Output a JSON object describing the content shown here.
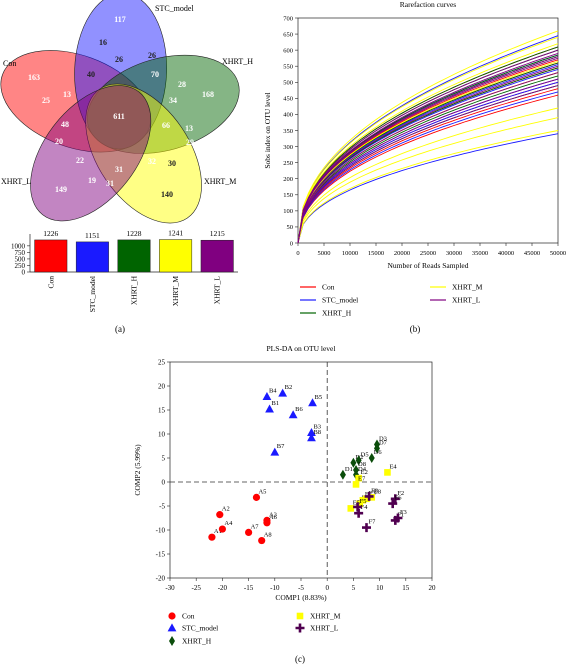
{
  "panel_labels": {
    "a": "(a)",
    "b": "(b)",
    "c": "(c)"
  },
  "venn": {
    "sets": [
      {
        "name": "Con",
        "color": "#ff0000",
        "unique": 163
      },
      {
        "name": "STC_model",
        "color": "#1a1aff",
        "unique": 117
      },
      {
        "name": "XHRT_H",
        "color": "#006400",
        "unique": 168
      },
      {
        "name": "XHRT_M",
        "color": "#ffff00",
        "unique": 140
      },
      {
        "name": "XHRT_L",
        "color": "#800080",
        "unique": 149
      }
    ],
    "core": 611,
    "other_counts": [
      "16",
      "26",
      "40",
      "70",
      "25",
      "13",
      "28",
      "26",
      "34",
      "66",
      "48",
      "13",
      "20",
      "30",
      "29",
      "32",
      "31",
      "22",
      "19",
      "31"
    ]
  },
  "chart_data": [
    {
      "type": "bar",
      "categories": [
        "Con",
        "STC_model",
        "XHRT_H",
        "XHRT_M",
        "XHRT_L"
      ],
      "values": [
        1226,
        1151,
        1228,
        1241,
        1215
      ],
      "colors": [
        "#ff0000",
        "#1a1aff",
        "#006400",
        "#ffff00",
        "#800080"
      ],
      "yticks": [
        0,
        250,
        500,
        750,
        1000
      ],
      "ylim": [
        0,
        1300
      ]
    },
    {
      "type": "line",
      "title": "Rarefaction curves",
      "xlabel": "Number of Reads Sampled",
      "ylabel": "Sobs index on OTU level",
      "xlim": [
        0,
        50000
      ],
      "ylim": [
        0,
        700
      ],
      "xticks": [
        0,
        5000,
        10000,
        15000,
        20000,
        25000,
        30000,
        35000,
        40000,
        45000,
        50000
      ],
      "yticks": [
        0,
        50,
        100,
        150,
        200,
        250,
        300,
        350,
        400,
        450,
        500,
        550,
        600,
        650,
        700
      ],
      "series": [
        {
          "name": "Con",
          "color": "#ff0000",
          "end_values": [
            460,
            530,
            570,
            610,
            500,
            545,
            560,
            480
          ]
        },
        {
          "name": "STC_model",
          "color": "#1a1aff",
          "end_values": [
            645,
            585,
            540,
            510,
            340,
            470,
            555,
            500
          ]
        },
        {
          "name": "XHRT_H",
          "color": "#006400",
          "end_values": [
            610,
            580,
            560,
            520,
            600,
            545,
            490,
            585
          ]
        },
        {
          "name": "XHRT_M",
          "color": "#ffff00",
          "end_values": [
            660,
            620,
            565,
            530,
            420,
            390,
            640,
            350
          ]
        },
        {
          "name": "XHRT_L",
          "color": "#800080",
          "end_values": [
            600,
            550,
            510,
            580,
            490,
            590,
            530,
            575
          ]
        }
      ]
    },
    {
      "type": "scatter",
      "title": "PLS-DA on OTU level",
      "xlabel": "COMP1 (8.83%)",
      "ylabel": "COMP2 (5.99%)",
      "xlim": [
        -30,
        20
      ],
      "ylim": [
        -20,
        25
      ],
      "xticks": [
        -30,
        -25,
        -20,
        -15,
        -10,
        -5,
        0,
        5,
        10,
        15,
        20
      ],
      "yticks": [
        -20,
        -15,
        -10,
        -5,
        0,
        5,
        10,
        15,
        20,
        25
      ],
      "series": [
        {
          "name": "Con",
          "color": "#ff0000",
          "marker": "circle",
          "points": [
            {
              "label": "A1",
              "x": -22,
              "y": -11.5
            },
            {
              "label": "A2",
              "x": -20.5,
              "y": -6.8
            },
            {
              "label": "A3",
              "x": -11.5,
              "y": -8.0
            },
            {
              "label": "A4",
              "x": -20,
              "y": -9.8
            },
            {
              "label": "A5",
              "x": -13.5,
              "y": -3.2
            },
            {
              "label": "A6",
              "x": -11.5,
              "y": -8.5
            },
            {
              "label": "A7",
              "x": -15,
              "y": -10.5
            },
            {
              "label": "A8",
              "x": -12.5,
              "y": -12.2
            }
          ]
        },
        {
          "name": "STC_model",
          "color": "#1a1aff",
          "marker": "triangle",
          "points": [
            {
              "label": "B1",
              "x": -11,
              "y": 15.2
            },
            {
              "label": "B2",
              "x": -8.5,
              "y": 18.5
            },
            {
              "label": "B3",
              "x": -3,
              "y": 10.3
            },
            {
              "label": "B4",
              "x": -11.5,
              "y": 17.8
            },
            {
              "label": "B5",
              "x": -2.8,
              "y": 16.5
            },
            {
              "label": "B6",
              "x": -6.5,
              "y": 14
            },
            {
              "label": "B7",
              "x": -10,
              "y": 6.2
            },
            {
              "label": "B8",
              "x": -3,
              "y": 9.2
            }
          ]
        },
        {
          "name": "XHRT_H",
          "color": "#0b4d0b",
          "marker": "diamond",
          "points": [
            {
              "label": "D1",
              "x": 3,
              "y": 1.5
            },
            {
              "label": "D2",
              "x": 5,
              "y": 4
            },
            {
              "label": "D3",
              "x": 9.5,
              "y": 7.8
            },
            {
              "label": "D4",
              "x": 5.5,
              "y": 1.5
            },
            {
              "label": "D5",
              "x": 6,
              "y": 4.5
            },
            {
              "label": "D6",
              "x": 8.5,
              "y": 5
            },
            {
              "label": "D7",
              "x": 9.5,
              "y": 7
            },
            {
              "label": "D8",
              "x": 5.5,
              "y": 2.5
            }
          ]
        },
        {
          "name": "XHRT_M",
          "color": "#ffff00",
          "marker": "square",
          "points": [
            {
              "label": "E1",
              "x": 6.2,
              "y": -4.5
            },
            {
              "label": "E2",
              "x": 6,
              "y": 0.8
            },
            {
              "label": "E3",
              "x": 7.5,
              "y": -3.5
            },
            {
              "label": "E4",
              "x": 11.5,
              "y": 2
            },
            {
              "label": "E5",
              "x": 4.5,
              "y": -5.5
            },
            {
              "label": "E6",
              "x": 6.8,
              "y": -3.8
            },
            {
              "label": "E7",
              "x": 5.5,
              "y": -0.5
            },
            {
              "label": "E8",
              "x": 8.5,
              "y": -3.2
            }
          ]
        },
        {
          "name": "XHRT_L",
          "color": "#500050",
          "marker": "plus",
          "points": [
            {
              "label": "F1",
              "x": 13,
              "y": -8
            },
            {
              "label": "F2",
              "x": 13,
              "y": -3.5
            },
            {
              "label": "F3",
              "x": 13.5,
              "y": -7.5
            },
            {
              "label": "F4",
              "x": 6,
              "y": -6.5
            },
            {
              "label": "F5",
              "x": 5.8,
              "y": -5.2
            },
            {
              "label": "F6",
              "x": 12.5,
              "y": -4.5
            },
            {
              "label": "F7",
              "x": 7.5,
              "y": -9.5
            },
            {
              "label": "F8",
              "x": 8,
              "y": -3
            }
          ]
        }
      ]
    }
  ]
}
